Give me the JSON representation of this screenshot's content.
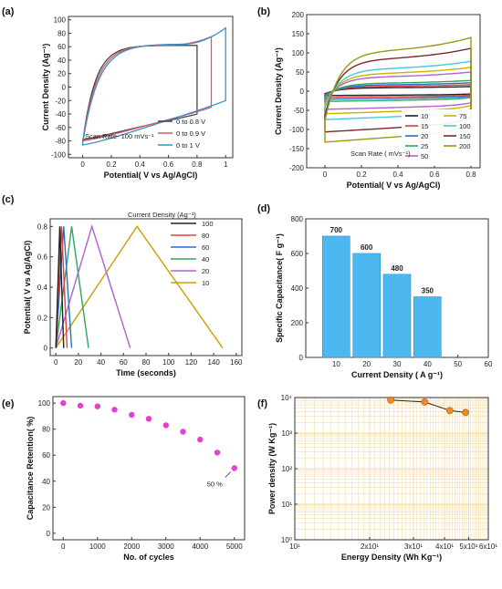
{
  "chart_data": [
    {
      "panel": "(a)",
      "type": "line",
      "xlabel": "Potential( V vs Ag/AgCl)",
      "ylabel": "Current Density (Ag⁻¹)",
      "xlim": [
        -0.1,
        1.05
      ],
      "ylim": [
        -105,
        105
      ],
      "xticks": [
        0,
        0.2,
        0.4,
        0.6,
        0.8,
        1
      ],
      "yticks": [
        -100,
        -80,
        -60,
        -40,
        -20,
        0,
        20,
        40,
        60,
        80,
        100
      ],
      "annotation": "Scan Rate- 100 mVs⁻¹",
      "legend_position": "bottom-right",
      "series": [
        {
          "name": "0 to 0.8 V",
          "color": "#444444",
          "vmax": 0.8,
          "top": 62,
          "upper_end": 62,
          "lower_start": -40,
          "bottom": -78
        },
        {
          "name": "0 to 0.9 V",
          "color": "#e05a5a",
          "vmax": 0.9,
          "top": 63,
          "upper_end": 75,
          "lower_start": -30,
          "bottom": -80
        },
        {
          "name": "0 to 1 V",
          "color": "#3a8fc9",
          "vmax": 1.0,
          "top": 64,
          "upper_end": 88,
          "lower_start": -20,
          "bottom": -86
        }
      ]
    },
    {
      "panel": "(b)",
      "type": "line",
      "xlabel": "Potential( V vs Ag/AgCl)",
      "ylabel": "Current Density (Ag⁻¹)",
      "xlim": [
        -0.1,
        0.85
      ],
      "ylim": [
        -200,
        200
      ],
      "xticks": [
        0,
        0.2,
        0.4,
        0.6,
        0.8
      ],
      "yticks": [
        -200,
        -150,
        -100,
        -50,
        0,
        50,
        100,
        150,
        200
      ],
      "legend_title": "Scan Rate ( mVs⁻¹)",
      "legend_position": "bottom-right",
      "series": [
        {
          "name": "10",
          "color": "#222222",
          "amp": 12
        },
        {
          "name": "15",
          "color": "#e04040",
          "amp": 17
        },
        {
          "name": "20",
          "color": "#2a6fd0",
          "amp": 22
        },
        {
          "name": "25",
          "color": "#2aa860",
          "amp": 28
        },
        {
          "name": "50",
          "color": "#b060d0",
          "amp": 50
        },
        {
          "name": "75",
          "color": "#c8b400",
          "amp": 62
        },
        {
          "name": "100",
          "color": "#40c8e0",
          "amp": 78
        },
        {
          "name": "150",
          "color": "#7a2a2a",
          "amp": 112
        },
        {
          "name": "200",
          "color": "#9a9a10",
          "amp": 140
        }
      ]
    },
    {
      "panel": "(c)",
      "type": "line",
      "xlabel": "Time (seconds)",
      "ylabel": "Potential( V vs Ag/AgCl)",
      "xlim": [
        -5,
        165
      ],
      "ylim": [
        -0.05,
        0.85
      ],
      "xticks": [
        0,
        20,
        40,
        60,
        80,
        100,
        120,
        140,
        160
      ],
      "yticks": [
        0,
        0.2,
        0.4,
        0.6,
        0.8
      ],
      "legend_title": "Current Density (Ag⁻¹)",
      "legend_position": "top-right",
      "series": [
        {
          "name": "100",
          "color": "#222222",
          "t_peak": 3.5,
          "t_end": 7
        },
        {
          "name": "80",
          "color": "#e04040",
          "t_peak": 5,
          "t_end": 10
        },
        {
          "name": "60",
          "color": "#2a6fd0",
          "t_peak": 7,
          "t_end": 14
        },
        {
          "name": "40",
          "color": "#2aa860",
          "t_peak": 14,
          "t_end": 29
        },
        {
          "name": "20",
          "color": "#b060d0",
          "t_peak": 32,
          "t_end": 66
        },
        {
          "name": "10",
          "color": "#c8a000",
          "t_peak": 72,
          "t_end": 148
        }
      ]
    },
    {
      "panel": "(d)",
      "type": "bar",
      "xlabel": "Current Density ( A g⁻¹)",
      "ylabel": "Specific Capacitance( F g⁻¹)",
      "x": [
        10,
        20,
        30,
        40
      ],
      "values": [
        700,
        600,
        480,
        350
      ],
      "value_labels": [
        "700",
        "600",
        "480",
        "350"
      ],
      "xlim": [
        0,
        60
      ],
      "ylim": [
        0,
        800
      ],
      "xticks": [
        10,
        20,
        30,
        40,
        50,
        60
      ],
      "yticks": [
        0,
        200,
        400,
        600,
        800
      ],
      "bar_color": "#4cb8ef"
    },
    {
      "panel": "(e)",
      "type": "scatter",
      "xlabel": "No. of cycles",
      "ylabel": "Capacitance Retention( %)",
      "x": [
        0,
        500,
        1000,
        1500,
        2000,
        2500,
        3000,
        3500,
        4000,
        4500,
        5000
      ],
      "y": [
        100,
        98,
        97.5,
        95,
        91,
        88,
        83,
        78,
        72,
        62,
        50
      ],
      "xlim": [
        -300,
        5300
      ],
      "ylim": [
        -5,
        105
      ],
      "xticks": [
        0,
        1000,
        2000,
        3000,
        4000,
        5000
      ],
      "yticks": [
        0,
        20,
        40,
        60,
        80,
        100
      ],
      "annotation": "50 %",
      "marker_color": "#e63ecf"
    },
    {
      "panel": "(f)",
      "type": "line",
      "xlabel": "Energy Density (Wh Kg⁻¹)",
      "ylabel": "Power density (W Kg⁻¹)",
      "xscale": "log",
      "yscale": "log",
      "xlim": [
        10,
        60
      ],
      "ylim": [
        1,
        10000
      ],
      "xtick_labels": [
        "10¹",
        "2x10¹",
        "3x10¹",
        "4x10¹",
        "5x10¹",
        "6x10¹"
      ],
      "xticks": [
        10,
        20,
        30,
        40,
        50,
        60
      ],
      "ytick_labels": [
        "10⁰",
        "10¹",
        "10²",
        "10³",
        "10⁴"
      ],
      "yticks": [
        1,
        10,
        100,
        1000,
        10000
      ],
      "x": [
        24.3,
        33.3,
        42.0,
        48.6
      ],
      "y": [
        8500,
        7500,
        4300,
        3800
      ],
      "marker_color": "#f08a24",
      "grid": true,
      "grid_color": "#f2d9a0"
    }
  ],
  "panel_labels": [
    "(a)",
    "(b)",
    "(c)",
    "(d)",
    "(e)",
    "(f)"
  ]
}
